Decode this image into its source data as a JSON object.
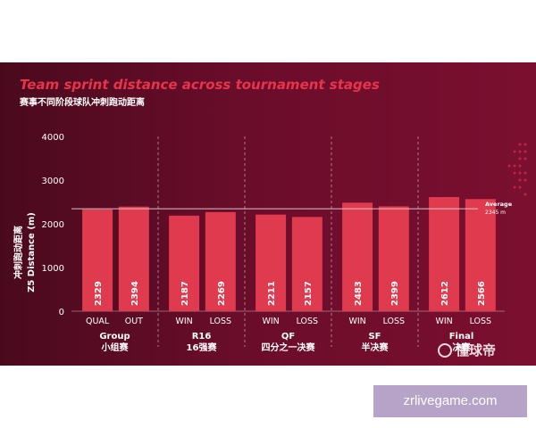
{
  "title": "Team sprint distance across tournament stages",
  "subtitle": "赛事不同阶段球队冲刺跑动距离",
  "watermark": "懂球帝",
  "banner": "zrlivegame.com",
  "colors": {
    "background": "#5c0b24",
    "bar": "#e03a4e",
    "title": "#e8344b",
    "text": "#ffffff",
    "average_line": "#d9c6cc"
  },
  "chart_data": {
    "type": "bar",
    "categories": [
      "QUAL",
      "OUT",
      "WIN",
      "LOSS",
      "WIN",
      "LOSS",
      "WIN",
      "LOSS",
      "WIN",
      "LOSS"
    ],
    "values": [
      2329,
      2394,
      2187,
      2269,
      2211,
      2157,
      2483,
      2399,
      2612,
      2566
    ],
    "groups": [
      {
        "label": "Group",
        "label_cn": "小组赛",
        "categories": [
          "QUAL",
          "OUT"
        ]
      },
      {
        "label": "R16",
        "label_cn": "16强赛",
        "categories": [
          "WIN",
          "LOSS"
        ]
      },
      {
        "label": "QF",
        "label_cn": "四分之一决赛",
        "categories": [
          "WIN",
          "LOSS"
        ]
      },
      {
        "label": "SF",
        "label_cn": "半决赛",
        "categories": [
          "WIN",
          "LOSS"
        ]
      },
      {
        "label": "Final",
        "label_cn": "决赛",
        "categories": [
          "WIN",
          "LOSS"
        ]
      }
    ],
    "ylabel": "Z5 Distance (m)",
    "ylabel_cn": "冲刺跑动距离",
    "ylim": [
      0,
      4000
    ],
    "yticks": [
      0,
      1000,
      2000,
      3000,
      4000
    ],
    "average": {
      "label": "Average",
      "value": 2345,
      "value_label": "2345 m"
    },
    "grid": false,
    "legend": "none"
  }
}
